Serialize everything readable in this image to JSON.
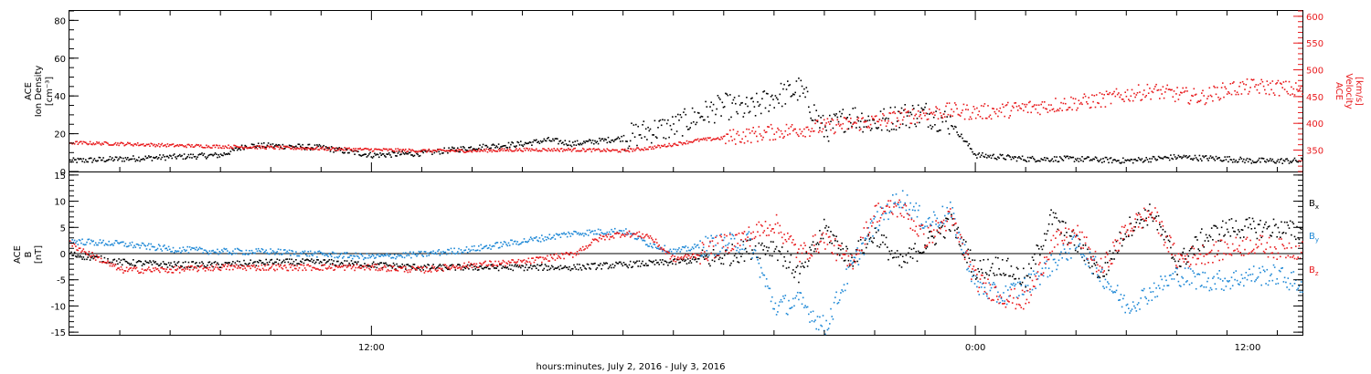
{
  "colors": {
    "black": "#000000",
    "red": "#e8191c",
    "blue": "#1e88d6"
  },
  "xaxis": {
    "title": "hours:minutes, July  2, 2016 - July  3, 2016",
    "range_hours": [
      6.0,
      30.5
    ],
    "ticks": [
      {
        "hour": 12,
        "label": "12:00"
      },
      {
        "hour": 24,
        "label": "0:00"
      },
      {
        "hour": 36,
        "label": "12:00"
      }
    ]
  },
  "chart_data": [
    {
      "type": "scatter",
      "panel": "top",
      "left_axis": {
        "label_lines": [
          "ACE",
          "Ion Density",
          "[cm⁻³]"
        ],
        "range": [
          0,
          85
        ],
        "ticks": [
          0,
          20,
          40,
          60,
          80
        ]
      },
      "right_axis": {
        "label_lines": [
          "ACE",
          "Velocity",
          "[km/s]"
        ],
        "range": [
          310,
          610
        ],
        "ticks": [
          350,
          400,
          450,
          500,
          550,
          600
        ]
      },
      "series": [
        {
          "axis": "left",
          "color": "#000000",
          "x_hours": [
            6.0,
            7.0,
            8.0,
            9.0,
            9.5,
            10.0,
            11.0,
            12.0,
            13.0,
            14.0,
            15.0,
            15.5,
            16.0,
            17.0,
            17.5,
            18.0,
            18.5,
            19.0,
            19.5,
            20.0,
            20.5,
            21.0,
            21.5,
            22.0,
            22.5,
            23.0,
            23.5,
            24.0,
            25.0,
            26.0,
            27.0,
            28.0,
            29.0,
            29.5,
            30.0,
            30.5
          ],
          "values": [
            6,
            7,
            8,
            9,
            14,
            14,
            13,
            9,
            10,
            13,
            15,
            17,
            15,
            18,
            22,
            24,
            30,
            35,
            33,
            40,
            44,
            22,
            30,
            26,
            30,
            31,
            26,
            9,
            7,
            7,
            6,
            8,
            7,
            6,
            6,
            6
          ]
        },
        {
          "axis": "right",
          "color": "#e8191c",
          "x_hours": [
            6.0,
            7.0,
            8.0,
            9.0,
            10.0,
            11.0,
            12.0,
            13.0,
            14.0,
            15.0,
            16.0,
            17.0,
            17.5,
            18.0,
            18.5,
            19.0,
            20.0,
            21.0,
            22.0,
            22.5,
            23.0,
            23.5,
            24.0,
            24.5,
            25.0,
            25.5,
            26.0,
            26.5,
            27.0,
            27.5,
            28.0,
            28.5,
            29.0,
            29.5,
            30.0,
            30.5
          ],
          "values": [
            365,
            363,
            360,
            358,
            356,
            354,
            352,
            350,
            350,
            352,
            352,
            350,
            355,
            362,
            370,
            374,
            385,
            395,
            405,
            412,
            420,
            425,
            422,
            425,
            430,
            435,
            440,
            445,
            455,
            462,
            455,
            450,
            465,
            470,
            468,
            462
          ]
        }
      ]
    },
    {
      "type": "scatter",
      "panel": "bottom",
      "left_axis": {
        "label_lines": [
          "ACE",
          "B",
          "[nT]"
        ],
        "range": [
          -15.5,
          15.5
        ],
        "ticks": [
          -15,
          -10,
          -5,
          0,
          5,
          10,
          15
        ]
      },
      "zero_line": true,
      "series": [
        {
          "name": "Bx",
          "color": "#000000",
          "x_hours": [
            6.0,
            7.0,
            8.0,
            9.0,
            10.0,
            11.0,
            12.0,
            13.0,
            14.0,
            15.0,
            16.0,
            17.0,
            18.0,
            19.0,
            19.5,
            20.0,
            20.5,
            21.0,
            21.5,
            22.0,
            22.5,
            23.0,
            23.5,
            24.0,
            24.5,
            25.0,
            25.5,
            26.0,
            26.5,
            27.0,
            27.5,
            28.0,
            28.5,
            29.0,
            29.5,
            30.0,
            30.5
          ],
          "values": [
            0,
            -1.5,
            -2,
            -2,
            -1.5,
            -1.5,
            -2,
            -2.5,
            -2.5,
            -2.5,
            -2.5,
            -2,
            -1.5,
            -0.5,
            1,
            1.5,
            -4,
            5,
            -1,
            4,
            -2,
            2,
            6,
            -3,
            -2,
            -5,
            7,
            2,
            -4,
            5,
            8,
            -2,
            3,
            5,
            5,
            5,
            4
          ]
        },
        {
          "name": "By",
          "color": "#1e88d6",
          "x_hours": [
            6.0,
            7.0,
            8.0,
            9.0,
            10.0,
            11.0,
            12.0,
            13.0,
            14.0,
            15.0,
            16.0,
            17.0,
            17.5,
            18.0,
            18.5,
            19.0,
            19.5,
            20.0,
            20.5,
            21.0,
            21.5,
            22.0,
            22.5,
            23.0,
            23.5,
            24.0,
            24.5,
            25.0,
            25.5,
            26.0,
            26.5,
            27.0,
            27.5,
            28.0,
            28.5,
            29.0,
            29.5,
            30.0,
            30.5
          ],
          "values": [
            2.5,
            2,
            1,
            0.5,
            0.5,
            0,
            -0.5,
            0,
            1,
            2.5,
            4,
            4.5,
            2,
            0.5,
            1.5,
            2,
            2.5,
            -10,
            -9,
            -14,
            -3,
            6,
            11,
            6,
            8,
            -6,
            -8,
            -6,
            -2,
            2,
            -4,
            -10,
            -7,
            -4,
            -5,
            -5,
            -4,
            -4,
            -6
          ]
        },
        {
          "name": "Bz",
          "color": "#e8191c",
          "x_hours": [
            6.0,
            7.0,
            8.0,
            9.0,
            10.0,
            11.0,
            12.0,
            13.0,
            14.0,
            15.0,
            16.0,
            16.5,
            17.0,
            17.5,
            18.0,
            18.5,
            19.0,
            19.5,
            20.0,
            20.5,
            21.0,
            21.5,
            22.0,
            22.5,
            23.0,
            23.5,
            24.0,
            24.5,
            25.0,
            25.5,
            26.0,
            26.5,
            27.0,
            27.5,
            28.0,
            28.5,
            29.0,
            29.5,
            30.0,
            30.5
          ],
          "values": [
            2,
            -3,
            -3,
            -2.5,
            -2.5,
            -2.5,
            -2.5,
            -3,
            -2,
            -1.5,
            0,
            3,
            4,
            3.5,
            -1,
            0,
            2,
            3.5,
            6,
            0,
            3,
            -2,
            8,
            9,
            3,
            7,
            -5,
            -8,
            -9,
            2,
            4,
            -3,
            5,
            8,
            -1,
            0,
            1,
            2,
            1,
            1
          ]
        }
      ],
      "legend": [
        {
          "label": "B",
          "sub": "x",
          "color": "#000000"
        },
        {
          "label": "B",
          "sub": "y",
          "color": "#1e88d6"
        },
        {
          "label": "B",
          "sub": "z",
          "color": "#e8191c"
        }
      ]
    }
  ]
}
